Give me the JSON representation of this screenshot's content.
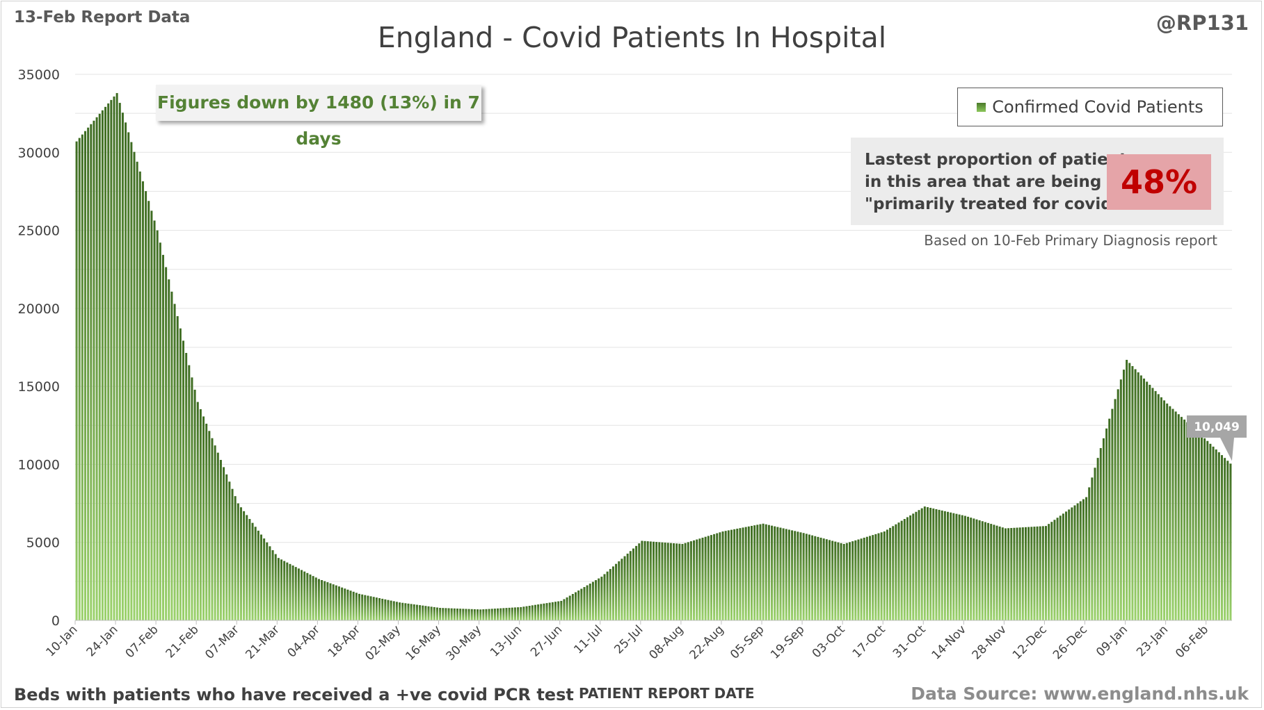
{
  "header": {
    "report_date": "13-Feb Report Data",
    "handle": "@RP131",
    "title": "England - Covid Patients In Hospital"
  },
  "callout": {
    "text": "Figures down by 1480 (13%) in 7 days"
  },
  "legend": {
    "label": "Confirmed Covid Patients"
  },
  "proportion_panel": {
    "lines": [
      "Lastest proportion of patients",
      "in this area that are being",
      "\"primarily treated for covid\"."
    ],
    "percent": "48%",
    "note": "Based on 10-Feb Primary Diagnosis report"
  },
  "footer": {
    "left": "Beds with patients who have received a +ve covid PCR test",
    "center": "PATIENT REPORT DATE",
    "right": "Data Source: www.england.nhs.uk"
  },
  "colors": {
    "bar_top": "#3d6b21",
    "bar_bottom": "#9bd26c",
    "grid": "#e3e3e3",
    "axis_text": "#404040",
    "label_box": "#a6a6a6"
  },
  "chart_data": {
    "type": "bar",
    "title": "England - Covid Patients In Hospital",
    "xlabel": "PATIENT REPORT DATE",
    "ylabel": "",
    "ylim": [
      0,
      35000
    ],
    "yticks": [
      0,
      5000,
      10000,
      15000,
      20000,
      25000,
      30000,
      35000
    ],
    "grid": true,
    "legend_position": "top-right",
    "series": [
      {
        "name": "Confirmed Covid Patients",
        "daily_points": 401,
        "anchor_dates": [
          "10-Jan",
          "24-Jan",
          "07-Feb",
          "21-Feb",
          "07-Mar",
          "21-Mar",
          "04-Apr",
          "18-Apr",
          "02-May",
          "16-May",
          "30-May",
          "13-Jun",
          "27-Jun",
          "11-Jul",
          "25-Jul",
          "08-Aug",
          "22-Aug",
          "05-Sep",
          "19-Sep",
          "03-Oct",
          "17-Oct",
          "31-Oct",
          "14-Nov",
          "28-Nov",
          "12-Dec",
          "26-Dec",
          "09-Jan",
          "23-Jan",
          "06-Feb",
          "13-Feb"
        ],
        "anchor_values": [
          30700,
          33800,
          25000,
          14000,
          7500,
          4000,
          2650,
          1700,
          1150,
          800,
          700,
          850,
          1250,
          2800,
          5100,
          4900,
          5700,
          6200,
          5600,
          4900,
          5700,
          7300,
          6700,
          5900,
          6050,
          7900,
          16700,
          13900,
          11500,
          10049
        ]
      }
    ],
    "x_tick_labels": [
      "10-Jan",
      "24-Jan",
      "07-Feb",
      "21-Feb",
      "07-Mar",
      "21-Mar",
      "04-Apr",
      "18-Apr",
      "02-May",
      "16-May",
      "30-May",
      "13-Jun",
      "27-Jun",
      "11-Jul",
      "25-Jul",
      "08-Aug",
      "22-Aug",
      "05-Sep",
      "19-Sep",
      "03-Oct",
      "17-Oct",
      "31-Oct",
      "14-Nov",
      "28-Nov",
      "12-Dec",
      "26-Dec",
      "09-Jan",
      "23-Jan",
      "06-Feb"
    ],
    "last_value_label": "10,049"
  }
}
